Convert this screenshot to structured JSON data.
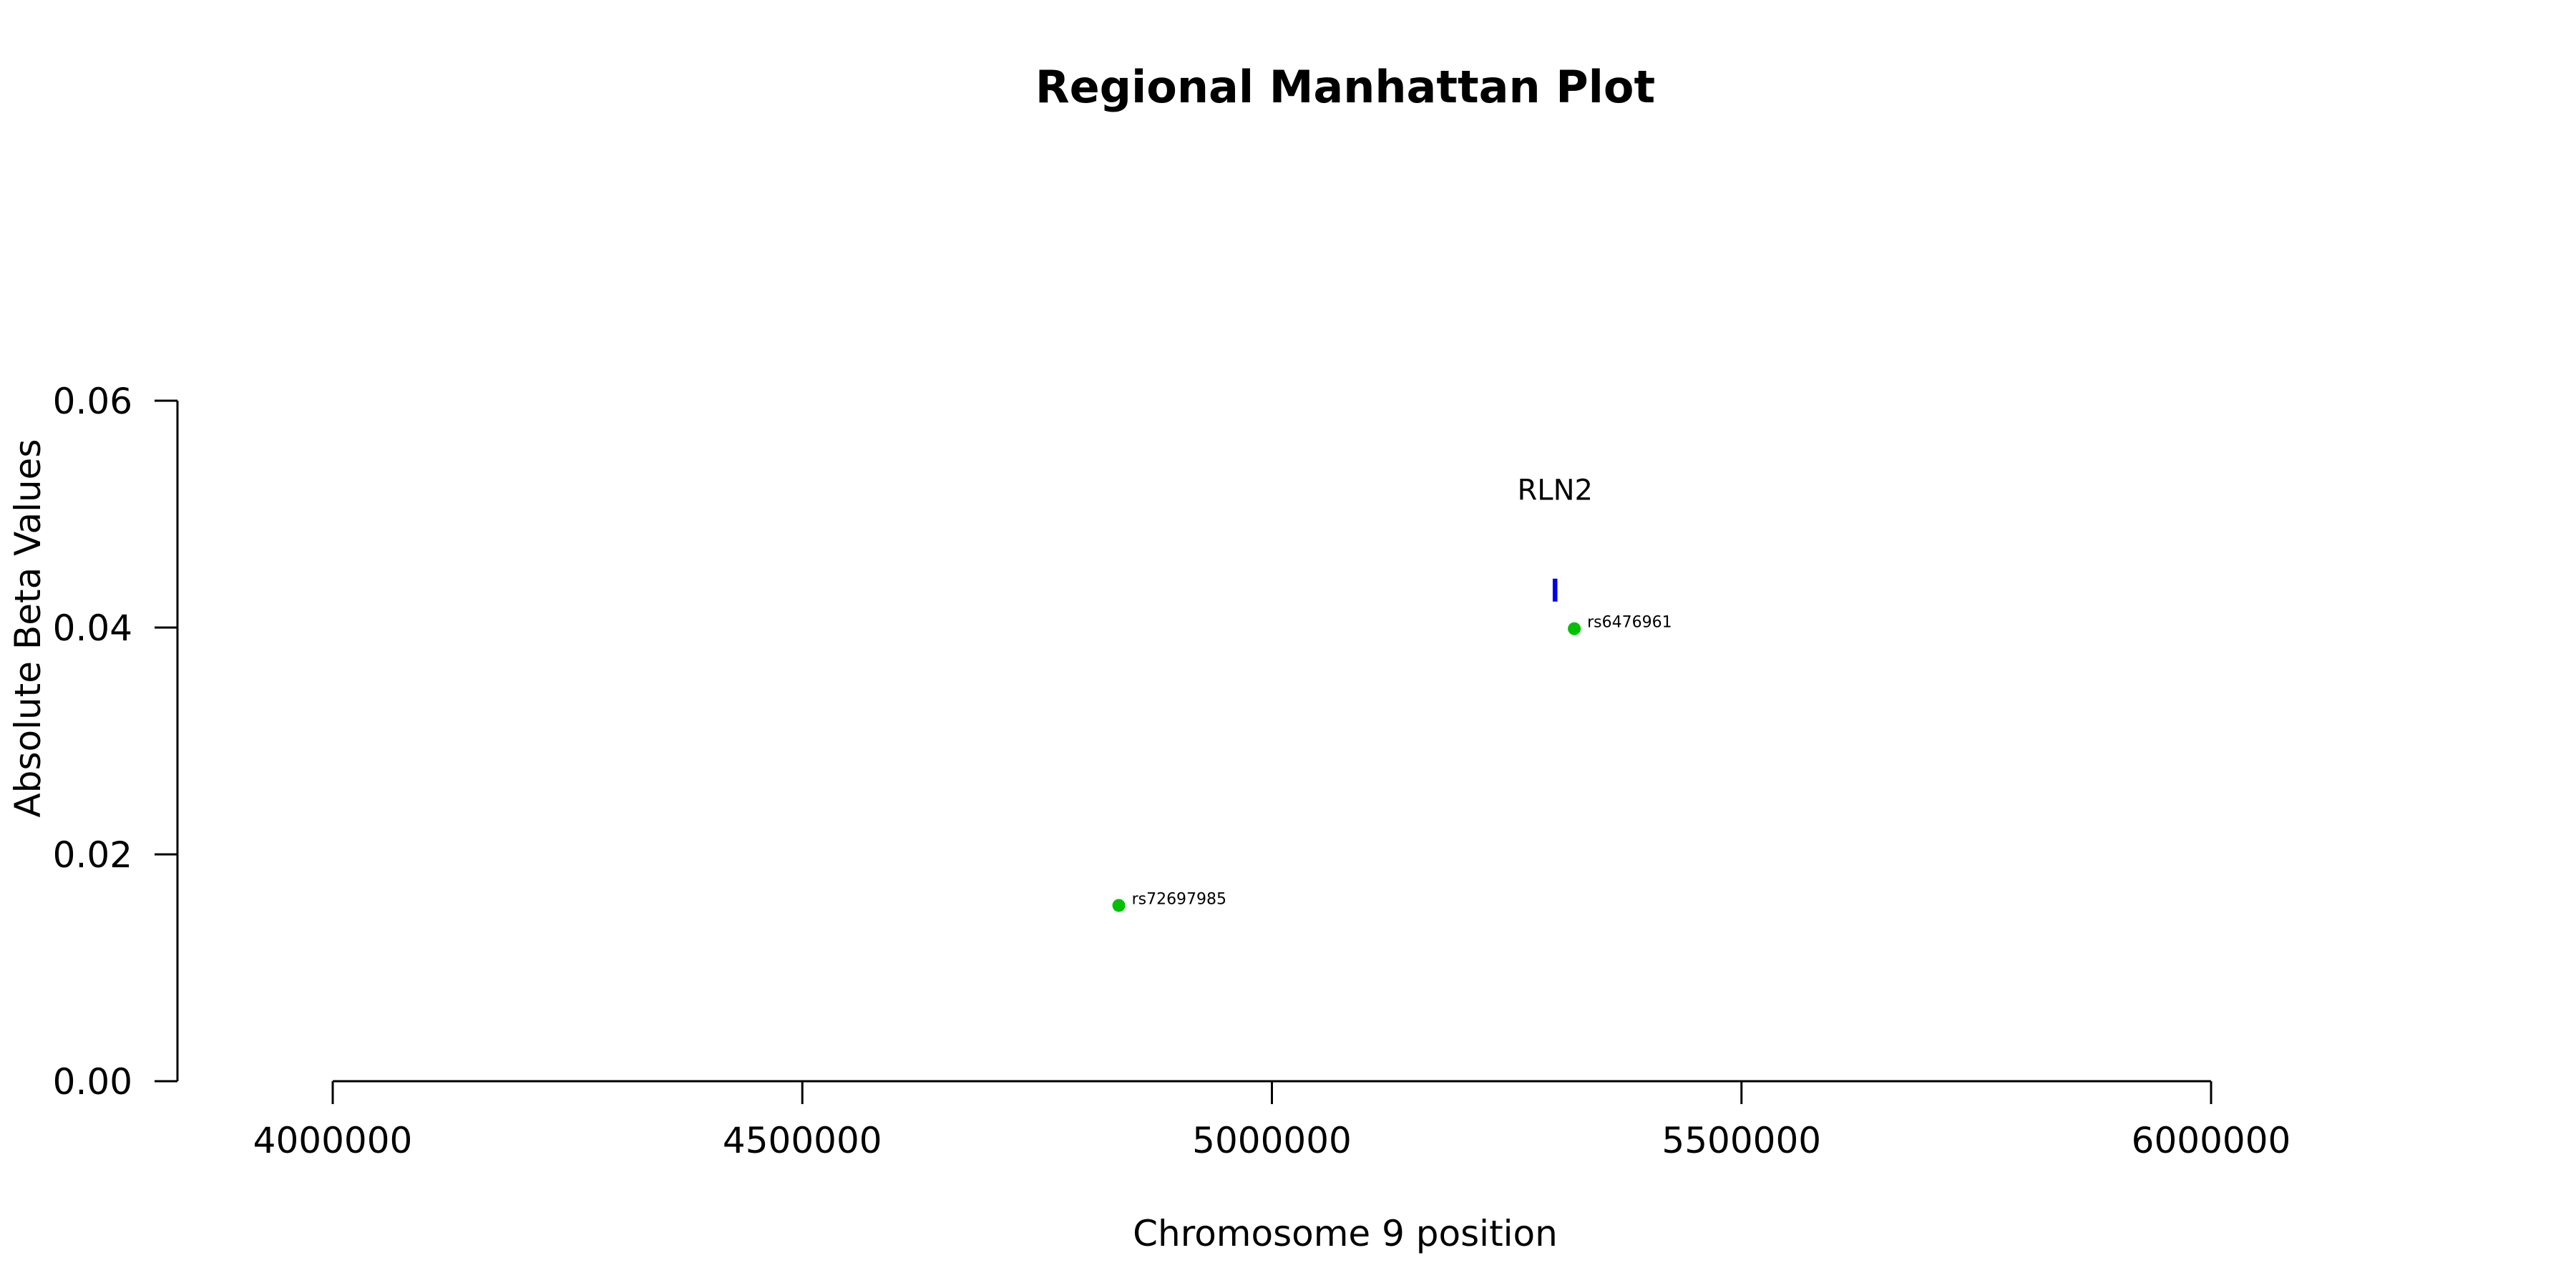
{
  "chart_data": {
    "type": "scatter",
    "title": "Regional Manhattan Plot",
    "xlabel": "Chromosome 9 position",
    "ylabel": "Absolute Beta Values",
    "xlim": [
      4000000,
      6000000
    ],
    "ylim": [
      0,
      0.06
    ],
    "x_ticks": [
      4000000,
      4500000,
      5000000,
      5500000,
      6000000
    ],
    "x_tick_labels": [
      "4000000",
      "4500000",
      "5000000",
      "5500000",
      "6000000"
    ],
    "y_ticks": [
      0,
      0.02,
      0.04,
      0.06
    ],
    "y_tick_labels": [
      "0.00",
      "0.02",
      "0.04",
      "0.06"
    ],
    "grid": false,
    "points": [
      {
        "label": "rs72697985",
        "x": 4837000,
        "y": 0.0155,
        "color": "#00c000"
      },
      {
        "label": "rs6476961",
        "x": 5322000,
        "y": 0.0399,
        "color": "#00c000"
      }
    ],
    "genes": [
      {
        "name": "RLN2",
        "start": 5299000,
        "end": 5304000,
        "y": 0.0433,
        "color": "#0000ee"
      }
    ]
  }
}
